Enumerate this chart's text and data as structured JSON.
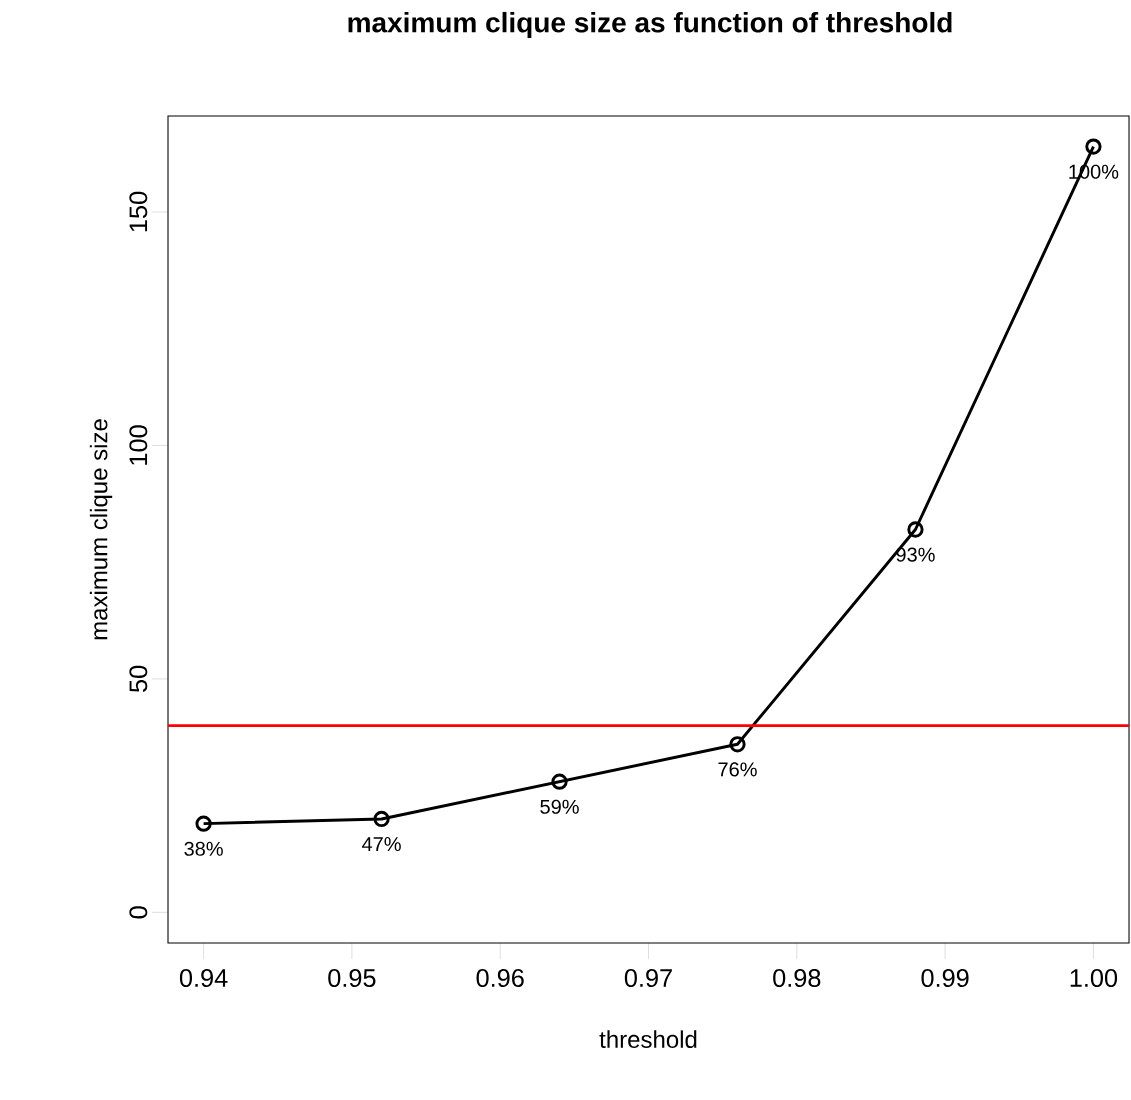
{
  "chart_data": {
    "type": "line",
    "title": "maximum clique size as function of threshold",
    "xlabel": "threshold",
    "ylabel": "maximum clique size",
    "x": [
      0.94,
      0.952,
      0.964,
      0.976,
      0.988,
      1.0
    ],
    "series": [
      {
        "color": "#000000",
        "values": [
          19,
          20,
          28,
          36,
          82,
          164
        ]
      }
    ],
    "annotations": [
      {
        "text": "38%",
        "x": 0.94,
        "y": 19
      },
      {
        "text": "47%",
        "x": 0.952,
        "y": 20
      },
      {
        "text": "59%",
        "x": 0.964,
        "y": 28
      },
      {
        "text": "76%",
        "x": 0.976,
        "y": 36
      },
      {
        "text": "93%",
        "x": 0.988,
        "y": 82
      },
      {
        "text": "100%",
        "x": 1.0,
        "y": 164
      }
    ],
    "marker": "circle",
    "line_style": "solid",
    "grid": false,
    "xlim": [
      0.9376,
      1.0024
    ],
    "ylim": [
      -6.56,
      170.56
    ],
    "xticks": [
      0.94,
      0.95,
      0.96,
      0.97,
      0.98,
      0.99,
      {
        "value": 1.0,
        "label": "1.00"
      }
    ],
    "yticks": [
      0,
      50,
      100,
      150
    ],
    "ref_lines": [
      {
        "axis": "y",
        "value": 40,
        "color": "#ff0000"
      }
    ]
  }
}
